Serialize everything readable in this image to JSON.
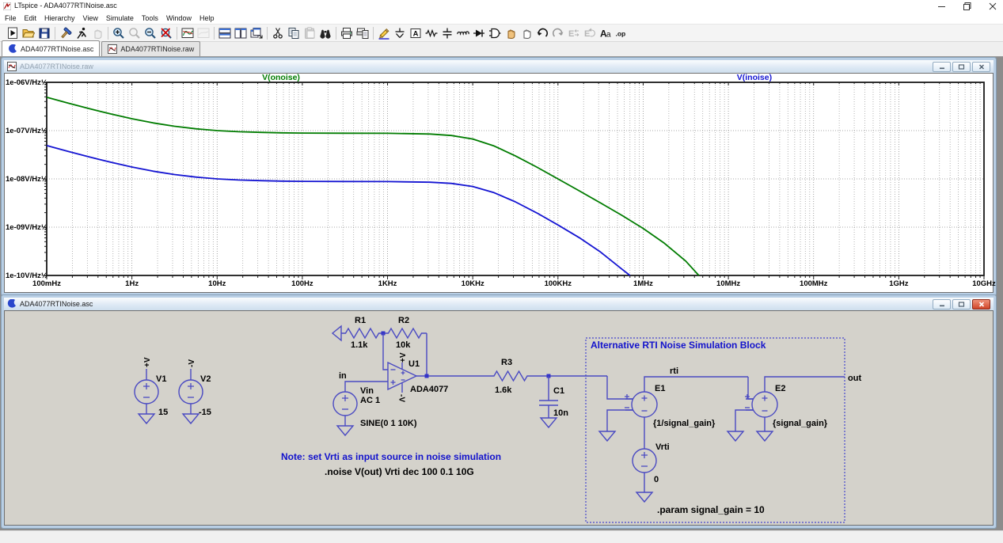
{
  "window": {
    "title": "LTspice - ADA4077RTINoise.asc",
    "controls": [
      {
        "name": "minimize",
        "glyph": "–"
      },
      {
        "name": "maximize",
        "glyph": "□"
      },
      {
        "name": "close",
        "glyph": "×"
      }
    ]
  },
  "menu": {
    "items": [
      "File",
      "Edit",
      "Hierarchy",
      "View",
      "Simulate",
      "Tools",
      "Window",
      "Help"
    ]
  },
  "toolbar": {
    "buttons": [
      {
        "icon": "run-icon",
        "name": "run",
        "enabled": true,
        "sep_after": false
      },
      {
        "icon": "open-icon",
        "name": "open",
        "enabled": true,
        "sep_after": false
      },
      {
        "icon": "save-icon",
        "name": "save",
        "enabled": true,
        "sep_after": true
      },
      {
        "icon": "control-panel-icon",
        "name": "control-panel",
        "enabled": true,
        "sep_after": false
      },
      {
        "icon": "run-simulation-icon",
        "name": "run-simulation",
        "enabled": true,
        "sep_after": false
      },
      {
        "icon": "halt-icon",
        "name": "halt",
        "enabled": false,
        "sep_after": true
      },
      {
        "icon": "zoom-in-icon",
        "name": "zoom-in",
        "enabled": true,
        "sep_after": false
      },
      {
        "icon": "zoom-box-icon",
        "name": "zoom-box",
        "enabled": false,
        "sep_after": false
      },
      {
        "icon": "zoom-out-icon",
        "name": "zoom-out",
        "enabled": true,
        "sep_after": false
      },
      {
        "icon": "zoom-full-icon",
        "name": "zoom-full-extents",
        "enabled": true,
        "sep_after": true
      },
      {
        "icon": "waveform-icon",
        "name": "view-waveform",
        "enabled": true,
        "sep_after": false
      },
      {
        "icon": "waveform-disabled-icon",
        "name": "view-spice-netlist",
        "enabled": false,
        "sep_after": true
      },
      {
        "icon": "tile-horizontal-icon",
        "name": "tile-horizontal",
        "enabled": true,
        "sep_after": false
      },
      {
        "icon": "tile-vertical-icon",
        "name": "tile-vertical",
        "enabled": true,
        "sep_after": false
      },
      {
        "icon": "cascade-icon",
        "name": "cascade-windows",
        "enabled": true,
        "sep_after": true
      },
      {
        "icon": "cut-icon",
        "name": "cut",
        "enabled": true,
        "sep_after": false
      },
      {
        "icon": "copy-icon",
        "name": "copy",
        "enabled": true,
        "sep_after": false
      },
      {
        "icon": "paste-icon",
        "name": "paste",
        "enabled": false,
        "sep_after": false
      },
      {
        "icon": "find-icon",
        "name": "find",
        "enabled": true,
        "sep_after": true
      },
      {
        "icon": "print-icon",
        "name": "print",
        "enabled": true,
        "sep_after": false
      },
      {
        "icon": "print-preview-icon",
        "name": "print-preview",
        "enabled": true,
        "sep_after": true
      },
      {
        "icon": "wire-icon",
        "name": "draw-wire",
        "enabled": true,
        "sep_after": false
      },
      {
        "icon": "ground-icon",
        "name": "place-ground",
        "enabled": true,
        "sep_after": false
      },
      {
        "icon": "label-icon",
        "name": "label-net",
        "enabled": true,
        "sep_after": false
      },
      {
        "icon": "resistor-icon",
        "name": "place-resistor",
        "enabled": true,
        "sep_after": false
      },
      {
        "icon": "capacitor-icon",
        "name": "place-capacitor",
        "enabled": true,
        "sep_after": false
      },
      {
        "icon": "inductor-icon",
        "name": "place-inductor",
        "enabled": true,
        "sep_after": false
      },
      {
        "icon": "diode-icon",
        "name": "place-diode",
        "enabled": true,
        "sep_after": false
      },
      {
        "icon": "component-icon",
        "name": "place-component",
        "enabled": true,
        "sep_after": false
      },
      {
        "icon": "move-icon",
        "name": "move",
        "enabled": true,
        "sep_after": false
      },
      {
        "icon": "drag-icon",
        "name": "drag",
        "enabled": true,
        "sep_after": false
      },
      {
        "icon": "undo-icon",
        "name": "undo",
        "enabled": true,
        "sep_after": false
      },
      {
        "icon": "redo-icon",
        "name": "redo",
        "enabled": false,
        "sep_after": false
      },
      {
        "icon": "mirror-icon",
        "name": "mirror",
        "enabled": false,
        "sep_after": false
      },
      {
        "icon": "rotate-icon",
        "name": "rotate",
        "enabled": false,
        "sep_after": false
      },
      {
        "icon": "text-icon",
        "name": "add-text",
        "enabled": true,
        "sep_after": false
      },
      {
        "icon": "spice-directive-icon",
        "name": "spice-directive",
        "enabled": true,
        "sep_after": false
      }
    ]
  },
  "tabs": [
    {
      "label": "ADA4077RTINoise.asc",
      "icon": "schematic-tab-icon",
      "active": true
    },
    {
      "label": "ADA4077RTINoise.raw",
      "icon": "waveform-tab-icon",
      "active": false
    }
  ],
  "plot_window": {
    "title": "ADA4077RTINoise.raw",
    "active": false,
    "controls": [
      "minimize",
      "restore",
      "close"
    ]
  },
  "chart_data": {
    "type": "line",
    "x_axis": {
      "scale": "log",
      "unit": "Hz",
      "range_hz": [
        0.1,
        10000000000
      ],
      "ticks": [
        "100mHz",
        "1Hz",
        "10Hz",
        "100Hz",
        "1KHz",
        "10KHz",
        "100KHz",
        "1MHz",
        "10MHz",
        "100MHz",
        "1GHz",
        "10GHz"
      ]
    },
    "y_axis": {
      "scale": "log",
      "unit": "V/Hz½",
      "range": [
        1e-10,
        1e-06
      ],
      "ticks": [
        "1e-06V/Hz½",
        "1e-07V/Hz½",
        "1e-08V/Hz½",
        "1e-09V/Hz½",
        "1e-10V/Hz½"
      ]
    },
    "grid": true,
    "legend_position": "top",
    "series": [
      {
        "name": "V(onoise)",
        "color": "#007c00",
        "label_x_frac": 0.25,
        "points": [
          [
            0.1,
            4.9e-07
          ],
          [
            0.178,
            3.72e-07
          ],
          [
            0.316,
            2.85e-07
          ],
          [
            0.562,
            2.22e-07
          ],
          [
            1,
            1.76e-07
          ],
          [
            1.78,
            1.44e-07
          ],
          [
            3.16,
            1.23e-07
          ],
          [
            5.62,
            1.09e-07
          ],
          [
            10,
            1e-07
          ],
          [
            17.8,
            9.5e-08
          ],
          [
            31.6,
            9.2e-08
          ],
          [
            56.2,
            9e-08
          ],
          [
            100,
            8.9e-08
          ],
          [
            316,
            8.84e-08
          ],
          [
            1000,
            8.8e-08
          ],
          [
            3160,
            8.5e-08
          ],
          [
            5620,
            7.9e-08
          ],
          [
            10000,
            6.7e-08
          ],
          [
            17800,
            4.8e-08
          ],
          [
            31600,
            3e-08
          ],
          [
            56200,
            1.76e-08
          ],
          [
            100000,
            1e-08
          ],
          [
            178000,
            5.66e-09
          ],
          [
            316000,
            3.17e-09
          ],
          [
            562000,
            1.76e-09
          ],
          [
            1000000,
            9.4e-10
          ],
          [
            1780000,
            4.63e-10
          ],
          [
            3160000,
            1.99e-10
          ],
          [
            4500000,
            1e-10
          ]
        ]
      },
      {
        "name": "V(inoise)",
        "color": "#1414d2",
        "label_x_frac": 0.755,
        "points": [
          [
            0.1,
            4.9e-08
          ],
          [
            0.178,
            3.72e-08
          ],
          [
            0.316,
            2.85e-08
          ],
          [
            0.562,
            2.22e-08
          ],
          [
            1,
            1.76e-08
          ],
          [
            1.78,
            1.44e-08
          ],
          [
            3.16,
            1.23e-08
          ],
          [
            5.62,
            1.09e-08
          ],
          [
            10,
            1e-08
          ],
          [
            17.8,
            9.5e-09
          ],
          [
            31.6,
            9.2e-09
          ],
          [
            56.2,
            9e-09
          ],
          [
            100,
            8.9e-09
          ],
          [
            316,
            8.84e-09
          ],
          [
            1000,
            8.8e-09
          ],
          [
            3160,
            8.55e-09
          ],
          [
            5620,
            8.07e-09
          ],
          [
            10000,
            6.97e-09
          ],
          [
            17800,
            5.19e-09
          ],
          [
            31600,
            3.35e-09
          ],
          [
            56200,
            1.98e-09
          ],
          [
            100000,
            1.11e-09
          ],
          [
            178000,
            6.06e-10
          ],
          [
            316000,
            3.06e-10
          ],
          [
            562000,
            1.36e-10
          ],
          [
            700000,
            1e-10
          ]
        ]
      }
    ]
  },
  "schematic_window": {
    "title": "ADA4077RTINoise.asc",
    "active": true,
    "controls": [
      "minimize",
      "restore",
      "close"
    ]
  },
  "schematic": {
    "wire_color": "#4a4ac2",
    "text_color": "#000000",
    "annotation_color": "#1212cc",
    "components": [
      {
        "ref": "V1",
        "value": "15",
        "type": "voltage-source"
      },
      {
        "ref": "V2",
        "value": "-15",
        "type": "voltage-source"
      },
      {
        "ref": "R1",
        "value": "1.1k",
        "type": "resistor"
      },
      {
        "ref": "R2",
        "value": "10k",
        "type": "resistor"
      },
      {
        "ref": "U1",
        "value": "ADA4077",
        "type": "opamp"
      },
      {
        "ref": "Vin",
        "value": "AC 1",
        "value2": "SINE(0 1 10K)",
        "type": "voltage-source"
      },
      {
        "ref": "R3",
        "value": "1.6k",
        "type": "resistor"
      },
      {
        "ref": "C1",
        "value": "10n",
        "type": "capacitor"
      },
      {
        "ref": "E1",
        "value": "{1/signal_gain}",
        "type": "vcvs"
      },
      {
        "ref": "Vrti",
        "value": "0",
        "type": "voltage-source"
      },
      {
        "ref": "E2",
        "value": "{signal_gain}",
        "type": "vcvs"
      }
    ],
    "net_labels": {
      "in": "in",
      "rti": "rti",
      "out": "out",
      "vplus": "+V",
      "vminus": "-V"
    },
    "annotations": {
      "block_title": "Alternative RTI Noise Simulation Block",
      "note": "Note: set Vrti as input source in noise simulation",
      "noise_directive": ".noise V(out) Vrti dec 100 0.1 10G",
      "param_directive": ".param signal_gain = 10"
    }
  }
}
